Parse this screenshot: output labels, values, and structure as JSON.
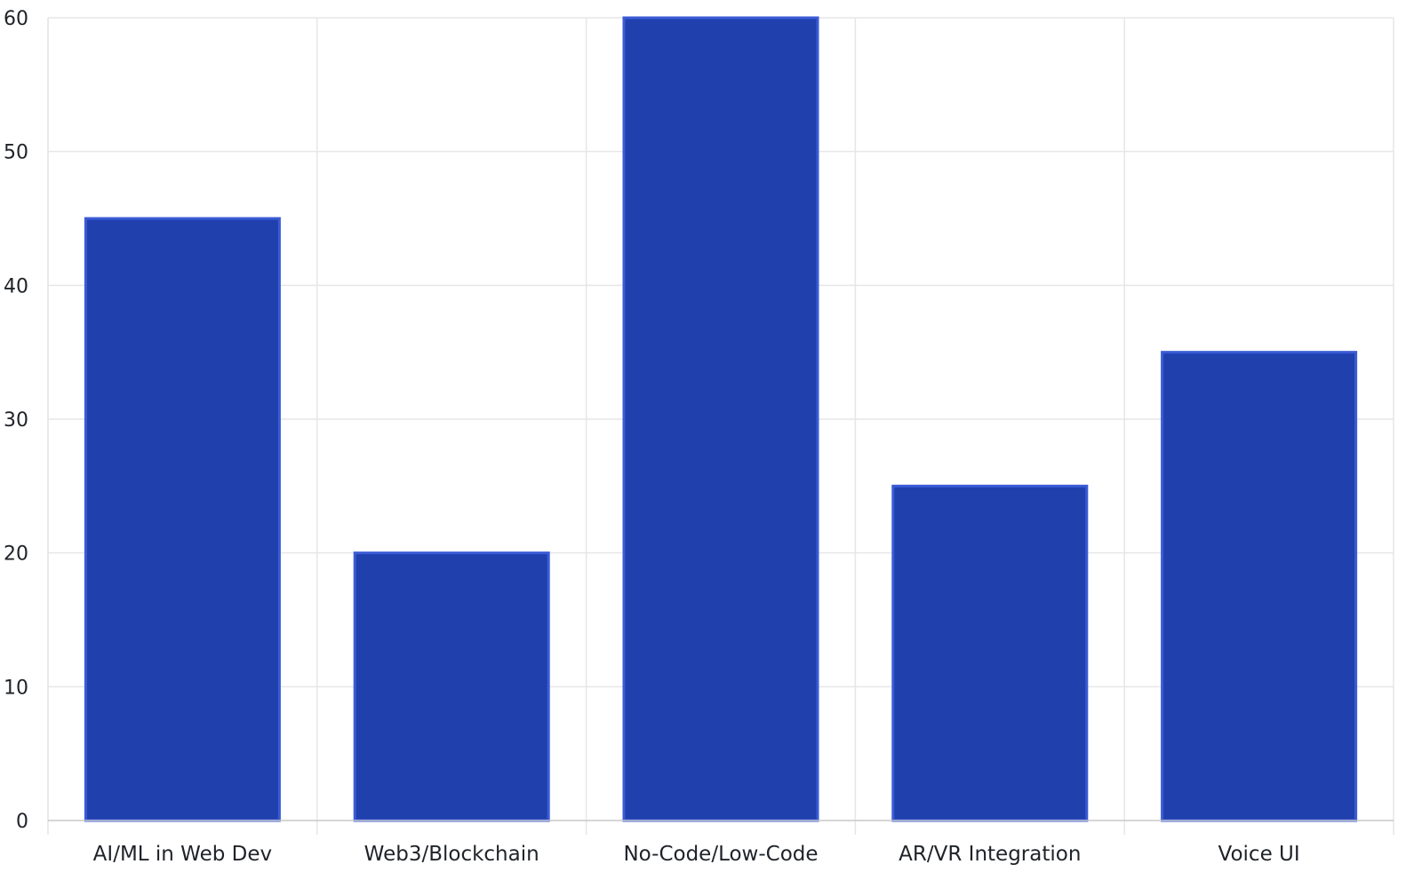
{
  "chart_data": {
    "type": "bar",
    "categories": [
      "AI/ML in Web Dev",
      "Web3/Blockchain",
      "No-Code/Low-Code",
      "AR/VR Integration",
      "Voice UI"
    ],
    "values": [
      45,
      20,
      60,
      25,
      35
    ],
    "title": "",
    "xlabel": "",
    "ylabel": "",
    "ylim": [
      0,
      60
    ],
    "yticks": [
      0,
      10,
      20,
      30,
      40,
      50,
      60
    ],
    "yticks_labels": [
      "0",
      "10",
      "20",
      "30",
      "40",
      "50",
      "60"
    ],
    "grid": true,
    "legend": "none",
    "bar_color": "#1f40ad",
    "bar_edge_color": "#3b5bd6"
  }
}
